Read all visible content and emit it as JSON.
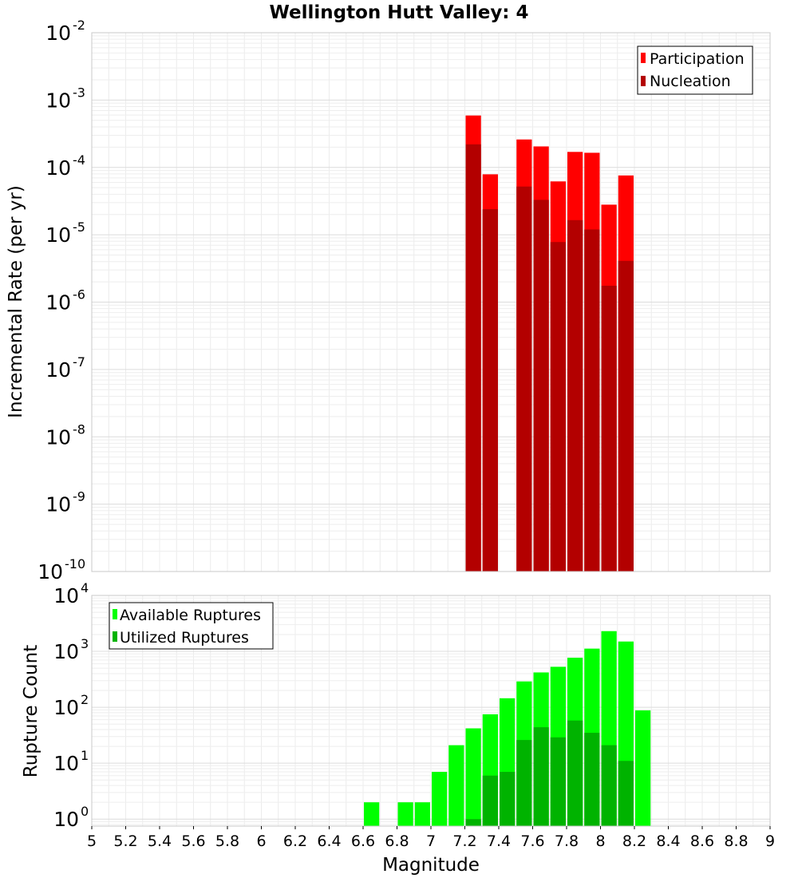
{
  "chart_data": [
    {
      "type": "bar",
      "title": "Wellington Hutt Valley: 4",
      "xlabel": "",
      "ylabel": "Incremental Rate (per yr)",
      "yscale": "log",
      "xlim": [
        5,
        9
      ],
      "ylim": [
        1e-10,
        0.01
      ],
      "bin_width": 0.1,
      "grid": true,
      "legend_position": "top-right",
      "y_ticks": [
        {
          "exp": -10
        },
        {
          "exp": -9
        },
        {
          "exp": -8
        },
        {
          "exp": -7
        },
        {
          "exp": -6
        },
        {
          "exp": -5
        },
        {
          "exp": -4
        },
        {
          "exp": -3
        },
        {
          "exp": -2
        }
      ],
      "series": [
        {
          "name": "Participation",
          "color": "#ff0000",
          "x": [
            7.25,
            7.35,
            7.55,
            7.65,
            7.75,
            7.85,
            7.95,
            8.05,
            8.15
          ],
          "values": [
            0.00059,
            7.9e-05,
            0.00026,
            0.000205,
            6.2e-05,
            0.00017,
            0.000165,
            2.8e-05,
            7.6e-05
          ]
        },
        {
          "name": "Nucleation",
          "color": "#b30000",
          "x": [
            7.25,
            7.35,
            7.55,
            7.65,
            7.75,
            7.85,
            7.95,
            8.05,
            8.15
          ],
          "values": [
            0.00022,
            2.4e-05,
            5.2e-05,
            3.3e-05,
            7.8e-06,
            1.65e-05,
            1.2e-05,
            1.75e-06,
            4.1e-06
          ]
        }
      ]
    },
    {
      "type": "bar",
      "title": "",
      "xlabel": "Magnitude",
      "ylabel": "Rupture Count",
      "yscale": "log",
      "xlim": [
        5,
        9
      ],
      "ylim": [
        0.75,
        10000.0
      ],
      "bin_width": 0.1,
      "grid": true,
      "legend_position": "top-left",
      "x_ticks": [
        "5",
        "5.2",
        "5.4",
        "5.6",
        "5.8",
        "6",
        "6.2",
        "6.4",
        "6.6",
        "6.8",
        "7",
        "7.2",
        "7.4",
        "7.6",
        "7.8",
        "8",
        "8.2",
        "8.4",
        "8.6",
        "8.8",
        "9"
      ],
      "y_ticks": [
        {
          "exp": 0
        },
        {
          "exp": 1
        },
        {
          "exp": 2
        },
        {
          "exp": 3
        },
        {
          "exp": 4
        }
      ],
      "series": [
        {
          "name": "Available Ruptures",
          "color": "#00ff00",
          "x": [
            6.65,
            6.85,
            6.95,
            7.05,
            7.15,
            7.25,
            7.35,
            7.45,
            7.55,
            7.65,
            7.75,
            7.85,
            7.95,
            8.05,
            8.15,
            8.25
          ],
          "values": [
            2,
            2,
            2,
            7,
            21,
            42,
            75,
            145,
            290,
            420,
            530,
            770,
            1120,
            2300,
            1500,
            88
          ]
        },
        {
          "name": "Utilized Ruptures",
          "color": "#00b300",
          "x": [
            7.25,
            7.35,
            7.45,
            7.55,
            7.65,
            7.75,
            7.85,
            7.95,
            8.05,
            8.15
          ],
          "values": [
            1,
            6,
            7,
            26,
            44,
            29,
            58,
            35,
            21,
            11
          ]
        }
      ]
    }
  ]
}
